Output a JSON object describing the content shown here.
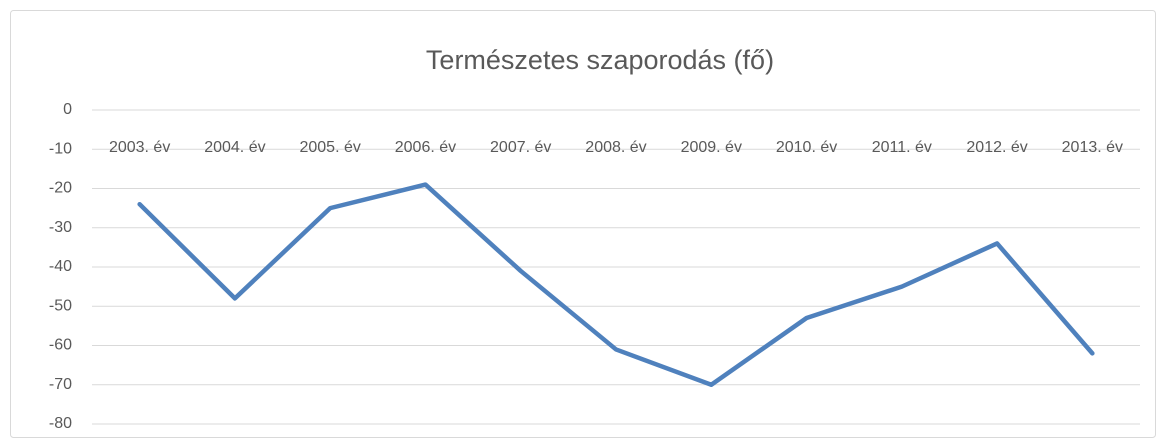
{
  "chart_data": {
    "type": "line",
    "title": "Természetes szaporodás (fő)",
    "categories": [
      "2003. év",
      "2004. év",
      "2005. év",
      "2006. év",
      "2007. év",
      "2008. év",
      "2009. év",
      "2010. év",
      "2011. év",
      "2012. év",
      "2013. év"
    ],
    "series": [
      {
        "name": "Természetes szaporodás (fő)",
        "color": "#4f81bd",
        "values": [
          -24,
          -48,
          -25,
          -19,
          -41,
          -61,
          -70,
          -53,
          -45,
          -34,
          -62
        ]
      }
    ],
    "ylim": [
      -80,
      0
    ],
    "yticks": [
      -80,
      -70,
      -60,
      -50,
      -40,
      -30,
      -20,
      -10,
      0
    ],
    "grid": true
  }
}
